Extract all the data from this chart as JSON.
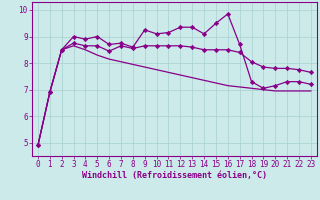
{
  "xlabel": "Windchill (Refroidissement éolien,°C)",
  "background_color": "#cceaea",
  "grid_color": "#a8d0d0",
  "line_color": "#880088",
  "x": [
    0,
    1,
    2,
    3,
    4,
    5,
    6,
    7,
    8,
    9,
    10,
    11,
    12,
    13,
    14,
    15,
    16,
    17,
    18,
    19,
    20,
    21,
    22,
    23
  ],
  "series1": [
    4.9,
    6.9,
    8.5,
    9.0,
    8.9,
    9.0,
    8.7,
    8.75,
    8.6,
    9.25,
    9.1,
    9.15,
    9.35,
    9.35,
    9.1,
    9.5,
    9.85,
    8.7,
    7.3,
    7.05,
    7.15,
    7.3,
    7.3,
    7.2
  ],
  "series2": [
    4.9,
    6.9,
    8.5,
    8.75,
    8.65,
    8.65,
    8.45,
    8.65,
    8.55,
    8.65,
    8.65,
    8.65,
    8.65,
    8.6,
    8.5,
    8.5,
    8.5,
    8.4,
    8.05,
    7.85,
    7.8,
    7.8,
    7.75,
    7.65
  ],
  "series3": [
    4.9,
    6.9,
    8.5,
    8.65,
    8.5,
    8.3,
    8.15,
    8.05,
    7.95,
    7.85,
    7.75,
    7.65,
    7.55,
    7.45,
    7.35,
    7.25,
    7.15,
    7.1,
    7.05,
    7.0,
    6.95,
    6.95,
    6.95,
    6.95
  ],
  "ylim": [
    4.5,
    10.3
  ],
  "yticks": [
    5,
    6,
    7,
    8,
    9,
    10
  ],
  "xlim": [
    -0.5,
    23.5
  ],
  "marker": "D",
  "marker_size": 2.2,
  "linewidth": 0.9,
  "tick_fontsize": 5.5,
  "xlabel_fontsize": 6.0,
  "axis_label_color": "#880088",
  "tick_label_color": "#880088",
  "border_color": "#880088"
}
